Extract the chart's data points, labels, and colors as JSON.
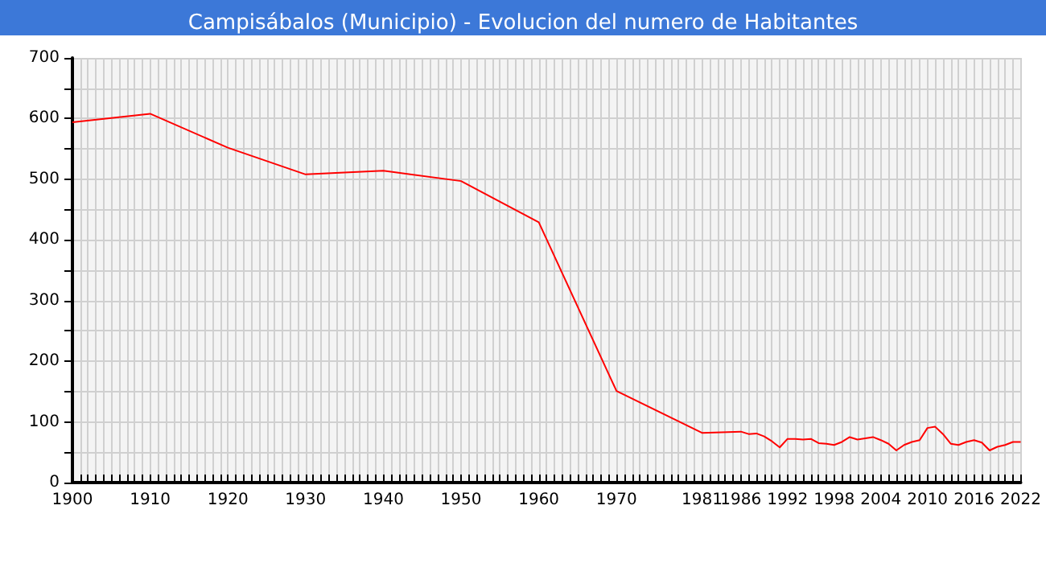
{
  "chart_data": {
    "type": "line",
    "title": "Campisábalos (Municipio) - Evolucion del numero de Habitantes",
    "x": [
      1900,
      1910,
      1920,
      1930,
      1940,
      1950,
      1960,
      1970,
      1981,
      1986,
      1987,
      1988,
      1989,
      1990,
      1991,
      1992,
      1993,
      1994,
      1995,
      1996,
      1997,
      1998,
      1999,
      2000,
      2001,
      2002,
      2003,
      2004,
      2005,
      2006,
      2007,
      2008,
      2009,
      2010,
      2011,
      2012,
      2013,
      2014,
      2015,
      2016,
      2017,
      2018,
      2019,
      2020,
      2021,
      2022
    ],
    "series": [
      {
        "color": "#ff0000",
        "values": [
          594,
          608,
          552,
          508,
          514,
          497,
          429,
          151,
          82,
          84,
          80,
          81,
          76,
          68,
          58,
          72,
          72,
          71,
          72,
          65,
          64,
          62,
          67,
          75,
          71,
          73,
          75,
          70,
          64,
          53,
          62,
          67,
          70,
          90,
          92,
          80,
          64,
          62,
          67,
          70,
          66,
          53,
          59,
          62,
          67,
          67
        ]
      }
    ],
    "xlim": [
      1900,
      2022
    ],
    "xticks": [
      1900,
      {
        "value": 1901,
        "label": null
      },
      {
        "value": 1902,
        "label": null
      },
      {
        "value": 1903,
        "label": null
      },
      {
        "value": 1904,
        "label": null
      },
      {
        "value": 1905,
        "label": null
      },
      {
        "value": 1906,
        "label": null
      },
      {
        "value": 1907,
        "label": null
      },
      {
        "value": 1908,
        "label": null
      },
      {
        "value": 1909,
        "label": null
      },
      1910,
      {
        "value": 1911,
        "label": null
      },
      {
        "value": 1912,
        "label": null
      },
      {
        "value": 1913,
        "label": null
      },
      {
        "value": 1914,
        "label": null
      },
      {
        "value": 1915,
        "label": null
      },
      {
        "value": 1916,
        "label": null
      },
      {
        "value": 1917,
        "label": null
      },
      {
        "value": 1918,
        "label": null
      },
      {
        "value": 1919,
        "label": null
      },
      1920,
      {
        "value": 1921,
        "label": null
      },
      {
        "value": 1922,
        "label": null
      },
      {
        "value": 1923,
        "label": null
      },
      {
        "value": 1924,
        "label": null
      },
      {
        "value": 1925,
        "label": null
      },
      {
        "value": 1926,
        "label": null
      },
      {
        "value": 1927,
        "label": null
      },
      {
        "value": 1928,
        "label": null
      },
      {
        "value": 1929,
        "label": null
      },
      1930,
      {
        "value": 1931,
        "label": null
      },
      {
        "value": 1932,
        "label": null
      },
      {
        "value": 1933,
        "label": null
      },
      {
        "value": 1934,
        "label": null
      },
      {
        "value": 1935,
        "label": null
      },
      {
        "value": 1936,
        "label": null
      },
      {
        "value": 1937,
        "label": null
      },
      {
        "value": 1938,
        "label": null
      },
      {
        "value": 1939,
        "label": null
      },
      1940,
      {
        "value": 1941,
        "label": null
      },
      {
        "value": 1942,
        "label": null
      },
      {
        "value": 1943,
        "label": null
      },
      {
        "value": 1944,
        "label": null
      },
      {
        "value": 1945,
        "label": null
      },
      {
        "value": 1946,
        "label": null
      },
      {
        "value": 1947,
        "label": null
      },
      {
        "value": 1948,
        "label": null
      },
      {
        "value": 1949,
        "label": null
      },
      1950,
      {
        "value": 1951,
        "label": null
      },
      {
        "value": 1952,
        "label": null
      },
      {
        "value": 1953,
        "label": null
      },
      {
        "value": 1954,
        "label": null
      },
      {
        "value": 1955,
        "label": null
      },
      {
        "value": 1956,
        "label": null
      },
      {
        "value": 1957,
        "label": null
      },
      {
        "value": 1958,
        "label": null
      },
      {
        "value": 1959,
        "label": null
      },
      1960,
      {
        "value": 1961,
        "label": null
      },
      {
        "value": 1962,
        "label": null
      },
      {
        "value": 1963,
        "label": null
      },
      {
        "value": 1964,
        "label": null
      },
      {
        "value": 1965,
        "label": null
      },
      {
        "value": 1966,
        "label": null
      },
      {
        "value": 1967,
        "label": null
      },
      {
        "value": 1968,
        "label": null
      },
      {
        "value": 1969,
        "label": null
      },
      1970,
      {
        "value": 1971,
        "label": null
      },
      {
        "value": 1972,
        "label": null
      },
      {
        "value": 1973,
        "label": null
      },
      {
        "value": 1974,
        "label": null
      },
      {
        "value": 1975,
        "label": null
      },
      {
        "value": 1976,
        "label": null
      },
      {
        "value": 1977,
        "label": null
      },
      {
        "value": 1978,
        "label": null
      },
      {
        "value": 1979,
        "label": null
      },
      {
        "value": 1980,
        "label": null
      },
      1981,
      {
        "value": 1982,
        "label": null
      },
      {
        "value": 1983,
        "label": null
      },
      {
        "value": 1984,
        "label": null
      },
      {
        "value": 1985,
        "label": null
      },
      1986,
      {
        "value": 1987,
        "label": null
      },
      {
        "value": 1988,
        "label": null
      },
      {
        "value": 1989,
        "label": null
      },
      {
        "value": 1990,
        "label": null
      },
      {
        "value": 1991,
        "label": null
      },
      1992,
      {
        "value": 1993,
        "label": null
      },
      {
        "value": 1994,
        "label": null
      },
      {
        "value": 1995,
        "label": null
      },
      {
        "value": 1996,
        "label": null
      },
      {
        "value": 1997,
        "label": null
      },
      1998,
      {
        "value": 1999,
        "label": null
      },
      {
        "value": 2000,
        "label": null
      },
      {
        "value": 2001,
        "label": null
      },
      {
        "value": 2002,
        "label": null
      },
      {
        "value": 2003,
        "label": null
      },
      2004,
      {
        "value": 2005,
        "label": null
      },
      {
        "value": 2006,
        "label": null
      },
      {
        "value": 2007,
        "label": null
      },
      {
        "value": 2008,
        "label": null
      },
      {
        "value": 2009,
        "label": null
      },
      2010,
      {
        "value": 2011,
        "label": null
      },
      {
        "value": 2012,
        "label": null
      },
      {
        "value": 2013,
        "label": null
      },
      {
        "value": 2014,
        "label": null
      },
      {
        "value": 2015,
        "label": null
      },
      2016,
      {
        "value": 2017,
        "label": null
      },
      {
        "value": 2018,
        "label": null
      },
      {
        "value": 2019,
        "label": null
      },
      {
        "value": 2020,
        "label": null
      },
      {
        "value": 2021,
        "label": null
      },
      2022
    ],
    "ylim": [
      0,
      700
    ],
    "yticks": [
      0,
      {
        "value": 50,
        "label": null
      },
      100,
      {
        "value": 150,
        "label": null
      },
      200,
      {
        "value": 250,
        "label": null
      },
      300,
      {
        "value": 350,
        "label": null
      },
      400,
      {
        "value": 450,
        "label": null
      },
      500,
      {
        "value": 550,
        "label": null
      },
      600,
      {
        "value": 650,
        "label": null
      },
      700
    ],
    "grid": true,
    "marker": "none",
    "line_style": "solid"
  }
}
